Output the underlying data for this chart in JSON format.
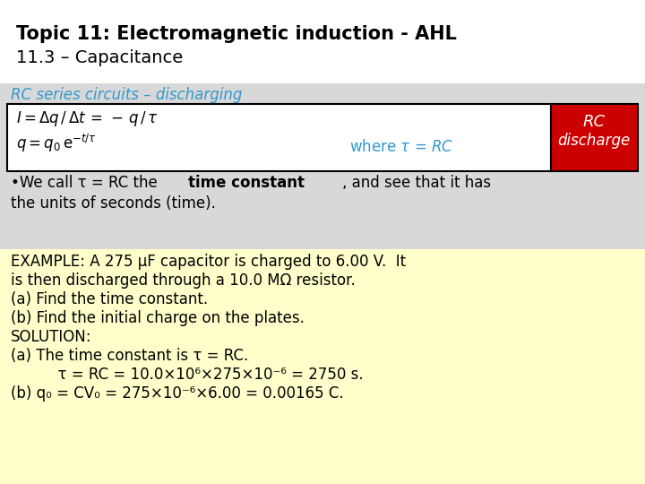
{
  "title_line1": "Topic 11: Electromagnetic induction - AHL",
  "title_line2": "11.3 – Capacitance",
  "bg_color": "#ffffff",
  "gray_bg": "#d8d8d8",
  "yellow_bg": "#ffffcc",
  "red_bg": "#cc0000",
  "blue_text": "#3399cc",
  "section_header": "RC series circuits – discharging",
  "formula_box_border": "#000000",
  "rc_label_text_line1": "RC",
  "rc_label_text_line2": "discharge",
  "bullet_line1": "•We call τ = RC the **time constant**, and see that it has",
  "bullet_line2": "the units of seconds (time).",
  "example_lines": [
    "EXAMPLE: A 275 μF capacitor is charged to 6.00 V.  It",
    "is then discharged through a 10.0 MΩ resistor.",
    "(a) Find the time constant.",
    "(b) Find the initial charge on the plates.",
    "SOLUTION:",
    "(a) The time constant is τ = RC.",
    "          τ = RC = 10.0×10⁶×275×10⁻⁶ = 2750 s.",
    "(b) q₀ = CV₀ = 275×10⁻⁶×6.00 = 0.00165 C."
  ]
}
